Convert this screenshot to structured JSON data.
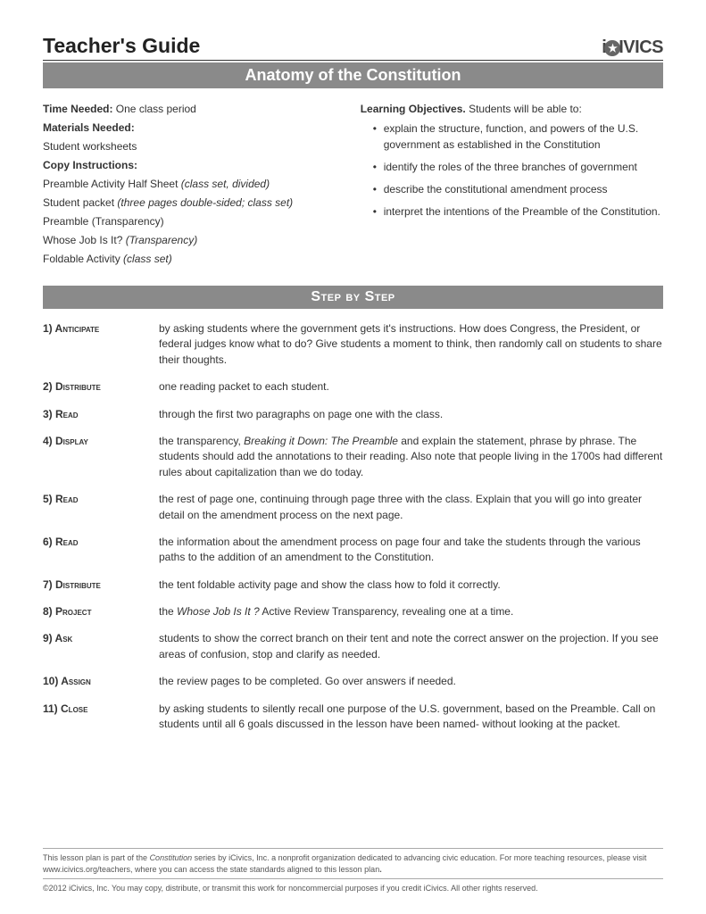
{
  "header": {
    "title": "Teacher's Guide",
    "logo_prefix": "i",
    "logo_suffix": "IVICS"
  },
  "main_banner": "Anatomy of the Constitution",
  "left": {
    "time_label": "Time Needed:",
    "time_value": " One class period",
    "materials_label": "Materials Needed:",
    "materials_value": "Student worksheets",
    "copy_label": "Copy Instructions:",
    "copy1a": "Preamble Activity Half Sheet ",
    "copy1b": "(class set, divided)",
    "copy2a": "Student packet ",
    "copy2b": "(three pages double-sided; class set)",
    "copy3": "Preamble (Transparency)",
    "copy4a": "Whose Job Is It? ",
    "copy4b": "(Transparency)",
    "copy5a": "Foldable Activity ",
    "copy5b": "(class set)"
  },
  "right": {
    "obj_label": "Learning Objectives.",
    "obj_tail": "  Students will be able to:",
    "items": [
      "explain the structure, function, and powers of the U.S. government as established in the Constitution",
      "identify the roles of the three branches of government",
      "describe the constitutional amendment process",
      "interpret the intentions of the Preamble of the Constitution."
    ]
  },
  "step_banner": "Step by Step",
  "steps": [
    {
      "num": "1)",
      "label": "Anticipate",
      "text": "by asking students where the government gets it's instructions. How does Congress, the President, or federal judges know what to do? Give students a moment to think, then randomly call on students to share their thoughts."
    },
    {
      "num": "2)",
      "label": "Distribute",
      "text": "one reading packet to each student."
    },
    {
      "num": "3)",
      "label": "Read",
      "text": "through the first two paragraphs on page one with the class."
    },
    {
      "num": "4)",
      "label": "Display",
      "pre": "the transparency, ",
      "ital": "Breaking it Down: The Preamble",
      "post": " and explain the statement, phrase by phrase. The students should add the annotations to their reading. Also note that people living in the 1700s had different rules about capitalization than we do today."
    },
    {
      "num": "5)",
      "label": "Read",
      "text": "the rest of page one, continuing through page three with the class. Explain that you will go into greater detail on the amendment process on the next page."
    },
    {
      "num": "6)",
      "label": "Read",
      "text": "the information about the amendment process on page four and take the students through the various paths to the addition of an amendment to the Constitution."
    },
    {
      "num": "7)",
      "label": "Distribute",
      "text": "the tent foldable activity page and show the class how to fold it correctly."
    },
    {
      "num": "8)",
      "label": "Project",
      "pre": "the ",
      "ital": "Whose Job Is It ?",
      "post": " Active Review Transparency, revealing one at a time."
    },
    {
      "num": "9)",
      "label": "Ask",
      "text": "students to show the correct branch on their tent and note the correct answer on the projection. If you see areas of confusion, stop and clarify as needed."
    },
    {
      "num": "10)",
      "label": "Assign",
      "text": "the review pages to be completed. Go over answers if needed."
    },
    {
      "num": "11)",
      "label": "Close",
      "text": "by asking students to silently recall one purpose of the U.S. government, based on the Preamble. Call on students until all 6 goals discussed in the lesson have been named- without looking at the packet."
    }
  ],
  "footer": {
    "line1a": "This lesson plan is part of the ",
    "line1b": "Constitution",
    "line1c": " series by iCivics, Inc. a nonprofit organization dedicated to advancing civic education. For more teaching resources, please visit www.icivics.org/teachers, where you can access the state standards aligned to this lesson plan",
    "line1d": ".",
    "line2": "©2012 iCivics, Inc. You may copy, distribute, or transmit this work for noncommercial purposes if you credit  iCivics. All other rights reserved."
  }
}
